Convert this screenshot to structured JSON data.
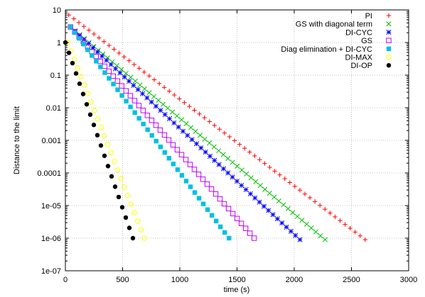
{
  "chart_data": {
    "type": "scatter",
    "xlabel": "time (s)",
    "ylabel": "Distance to the limit",
    "xlim": [
      0,
      3000
    ],
    "ylim": [
      1e-07,
      10
    ],
    "yscale": "log",
    "grid": true,
    "legend_position": "top-right",
    "x_ticks": [
      0,
      500,
      1000,
      1500,
      2000,
      2500,
      3000
    ],
    "x_tick_labels": [
      "0",
      "500",
      "1000",
      "1500",
      "2000",
      "2500",
      "3000"
    ],
    "y_ticks": [
      1e-07,
      1e-06,
      1e-05,
      0.0001,
      0.001,
      0.01,
      0.1,
      1,
      10
    ],
    "y_tick_labels": [
      "1e-07",
      "1e-06",
      "1e-05",
      "0.0001",
      "0.001",
      "0.01",
      "0.1",
      "1",
      "10"
    ],
    "series": [
      {
        "name": "PI",
        "color": "#ff0000",
        "marker": "plus",
        "x_start": 30,
        "x_end": 2620,
        "y_start": 7,
        "y_end": 9e-07,
        "count": 60
      },
      {
        "name": "GS with diagonal term",
        "color": "#00c000",
        "marker": "cross",
        "x_start": 45,
        "x_end": 2270,
        "y_start": 3,
        "y_end": 9e-07,
        "count": 56
      },
      {
        "name": "DI-CYC",
        "color": "#0000ff",
        "marker": "star",
        "x_start": 45,
        "x_end": 2050,
        "y_start": 3,
        "y_end": 9e-07,
        "count": 52
      },
      {
        "name": "GS",
        "color": "#c000ff",
        "marker": "square-open",
        "x_start": 45,
        "x_end": 1650,
        "y_start": 3,
        "y_end": 1e-06,
        "count": 44
      },
      {
        "name": "Diag elimination + DI-CYC",
        "color": "#00c0e0",
        "marker": "square-filled",
        "x_start": 45,
        "x_end": 1430,
        "y_start": 3,
        "y_end": 1e-06,
        "count": 38
      },
      {
        "name": "DI-MAX",
        "color": "#ffff00",
        "marker": "circle-open",
        "x_start": 20,
        "x_end": 690,
        "y_start": 1,
        "y_end": 1e-06,
        "count": 24
      },
      {
        "name": "DI-OP",
        "color": "#000000",
        "marker": "circle-filled",
        "x_start": 0,
        "x_end": 590,
        "y_start": 1,
        "y_end": 1e-06,
        "count": 20
      }
    ]
  }
}
